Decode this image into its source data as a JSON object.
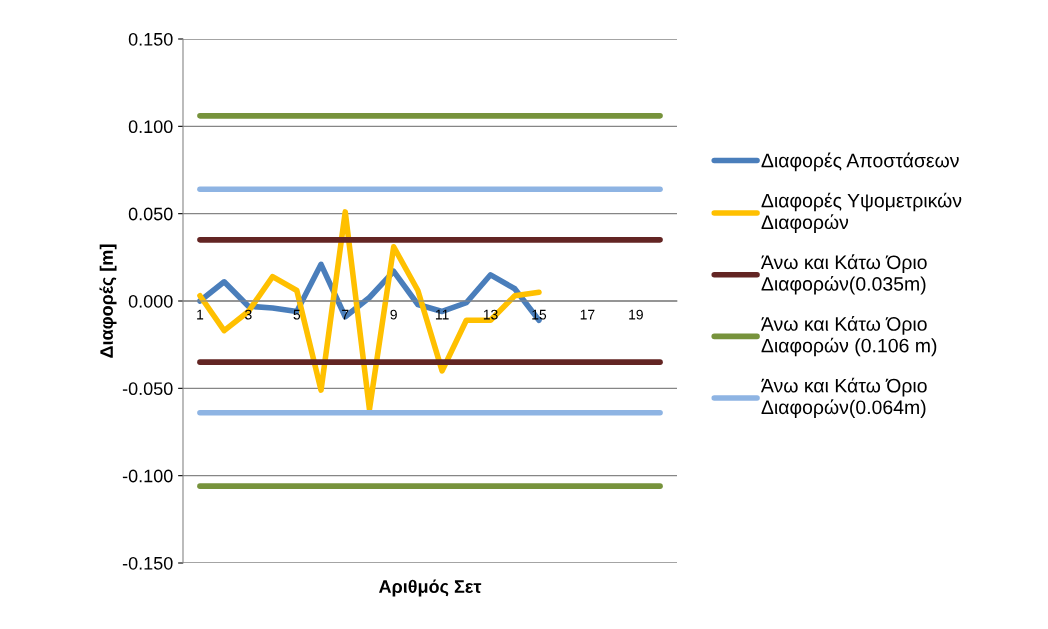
{
  "chart_data": {
    "type": "line",
    "xlabel": "Αριθμός Σετ",
    "ylabel": "Διαφορές [m]",
    "categories": [
      "1",
      null,
      "3",
      null,
      "5",
      null,
      "7",
      null,
      "9",
      null,
      "11",
      null,
      "13",
      null,
      "15",
      null,
      "17",
      null,
      "19",
      null
    ],
    "series": [
      {
        "name": "Διαφορές Αποστάσεων",
        "color": "#4a7ebb",
        "values": [
          0.0,
          0.011,
          -0.003,
          -0.004,
          -0.006,
          0.021,
          -0.009,
          0.002,
          0.017,
          -0.002,
          -0.006,
          -0.001,
          0.015,
          0.007,
          -0.011,
          null,
          null,
          null,
          null,
          null
        ]
      },
      {
        "name": "Διαφορές Υψομετρικών Διαφορών",
        "color": "#ffc000",
        "values": [
          0.003,
          -0.017,
          -0.006,
          0.014,
          0.006,
          -0.051,
          0.051,
          -0.062,
          0.031,
          0.006,
          -0.04,
          -0.011,
          -0.011,
          0.003,
          0.005,
          null,
          null,
          null,
          null,
          null
        ]
      },
      {
        "name": "Άνω και Κάτω Όριο Διαφορών(0.035m)",
        "color": "#632523",
        "values": [
          0.035,
          0.035,
          0.035,
          0.035,
          0.035,
          0.035,
          0.035,
          0.035,
          0.035,
          0.035,
          0.035,
          0.035,
          0.035,
          0.035,
          0.035,
          0.035,
          0.035,
          0.035,
          0.035,
          0.035
        ]
      },
      {
        "color": "#632523",
        "values": [
          -0.035,
          -0.035,
          -0.035,
          -0.035,
          -0.035,
          -0.035,
          -0.035,
          -0.035,
          -0.035,
          -0.035,
          -0.035,
          -0.035,
          -0.035,
          -0.035,
          -0.035,
          -0.035,
          -0.035,
          -0.035,
          -0.035,
          -0.035
        ]
      },
      {
        "name": "Άνω και Κάτω Όριο Διαφορών (0.106 m)",
        "color": "#77933c",
        "values": [
          0.106,
          0.106,
          0.106,
          0.106,
          0.106,
          0.106,
          0.106,
          0.106,
          0.106,
          0.106,
          0.106,
          0.106,
          0.106,
          0.106,
          0.106,
          0.106,
          0.106,
          0.106,
          0.106,
          0.106
        ]
      },
      {
        "color": "#77933c",
        "values": [
          -0.106,
          -0.106,
          -0.106,
          -0.106,
          -0.106,
          -0.106,
          -0.106,
          -0.106,
          -0.106,
          -0.106,
          -0.106,
          -0.106,
          -0.106,
          -0.106,
          -0.106,
          -0.106,
          -0.106,
          -0.106,
          -0.106,
          -0.106
        ]
      },
      {
        "name": "Άνω και Κάτω Όριο Διαφορών(0.064m)",
        "color": "#8eb4e3",
        "values": [
          0.064,
          0.064,
          0.064,
          0.064,
          0.064,
          0.064,
          0.064,
          0.064,
          0.064,
          0.064,
          0.064,
          0.064,
          0.064,
          0.064,
          0.064,
          0.064,
          0.064,
          0.064,
          0.064,
          0.064
        ]
      },
      {
        "color": "#8eb4e3",
        "values": [
          -0.064,
          -0.064,
          -0.064,
          -0.064,
          -0.064,
          -0.064,
          -0.064,
          -0.064,
          -0.064,
          -0.064,
          -0.064,
          -0.064,
          -0.064,
          -0.064,
          -0.064,
          -0.064,
          -0.064,
          -0.064,
          -0.064,
          -0.064
        ]
      }
    ],
    "ylim": [
      -0.15,
      0.15
    ],
    "yticks": [
      {
        "value": -0.15,
        "label": "-0.150"
      },
      {
        "value": -0.1,
        "label": "-0.100"
      },
      {
        "value": -0.05,
        "label": "-0.050"
      },
      {
        "value": 0,
        "label": "0.000"
      },
      {
        "value": 0.05,
        "label": "0.050"
      },
      {
        "value": 0.1,
        "label": "0.100"
      },
      {
        "value": 0.15,
        "label": "0.150"
      }
    ],
    "grid": "y",
    "legend": "right",
    "marker": "none",
    "line_style": "solid"
  }
}
